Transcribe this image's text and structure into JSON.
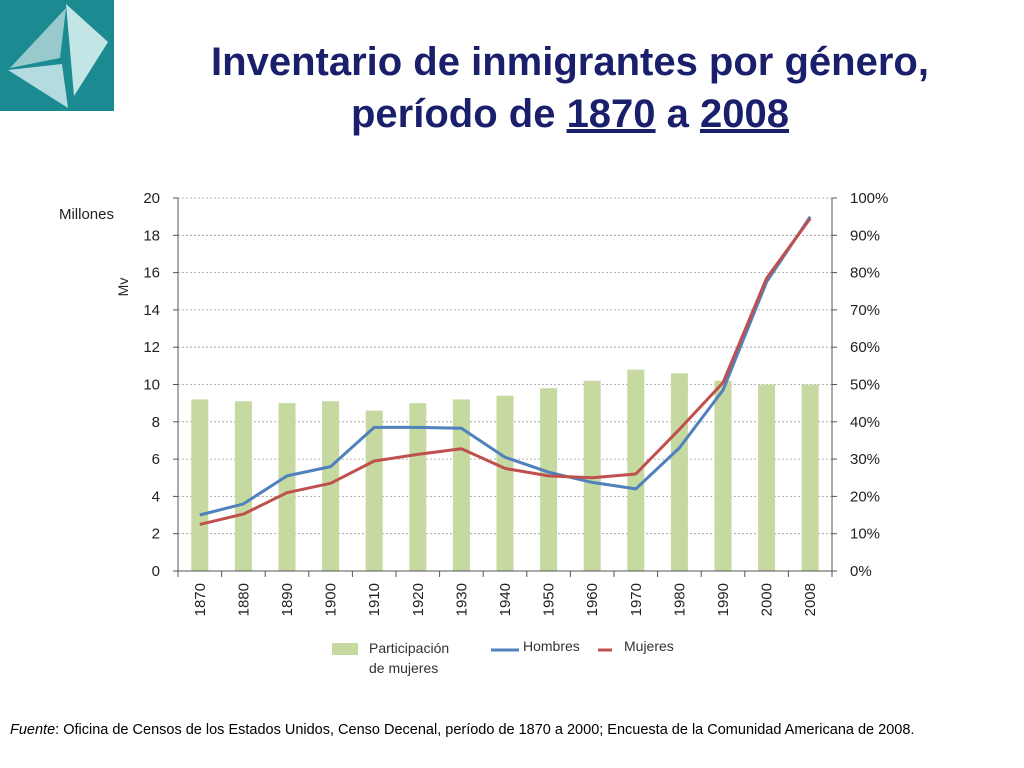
{
  "title": {
    "line1": "Inventario de inmigrantes por género,",
    "line2_prefix": "período de ",
    "line2_year1": "1870",
    "line2_mid": " a ",
    "line2_year2": "2008"
  },
  "source": {
    "label": "Fuente",
    "text": ": Oficina de Censos de los Estados Unidos, Censo Decenal, período de 1870 a 2000; Encuesta de la Comunidad Americana de 2008."
  },
  "colors": {
    "title": "#1a1f6b",
    "bars": "#c5d9a0",
    "hombres": "#4f81bd",
    "mujeres": "#c0504d",
    "logo_bg": "#1b8a91"
  },
  "chart_data": {
    "type": "bar+line",
    "categories": [
      "1870",
      "1880",
      "1890",
      "1900",
      "1910",
      "1920",
      "1930",
      "1940",
      "1950",
      "1960",
      "1970",
      "1980",
      "1990",
      "2000",
      "2008"
    ],
    "left_axis": {
      "label": "Millones",
      "min": 0,
      "max": 20,
      "ticks": [
        "0",
        "2",
        "4",
        "6",
        "8",
        "10",
        "12",
        "14",
        "16",
        "18",
        "20"
      ]
    },
    "right_axis": {
      "min": 0,
      "max": 100,
      "ticks": [
        "0%",
        "10%",
        "20%",
        "30%",
        "40%",
        "50%",
        "60%",
        "70%",
        "80%",
        "90%",
        "100%"
      ]
    },
    "stray_label": "Mv",
    "series": [
      {
        "name": "Participación de mujeres",
        "name_line1": "Participación",
        "name_line2": "de mujeres",
        "kind": "bar",
        "axis": "right",
        "values": [
          46,
          45.5,
          45,
          45.5,
          43,
          45,
          46,
          47,
          49,
          51,
          54,
          53,
          51,
          50,
          50
        ]
      },
      {
        "name": "Hombres",
        "kind": "line",
        "axis": "left",
        "values": [
          3.0,
          3.6,
          5.1,
          5.6,
          7.7,
          7.7,
          7.65,
          6.1,
          5.3,
          4.75,
          4.4,
          6.6,
          9.7,
          15.5,
          19.0
        ]
      },
      {
        "name": "Mujeres",
        "kind": "line",
        "axis": "left",
        "values": [
          2.5,
          3.05,
          4.2,
          4.7,
          5.9,
          6.25,
          6.55,
          5.5,
          5.1,
          5.0,
          5.2,
          7.6,
          10.1,
          15.7,
          18.9
        ]
      }
    ],
    "grid": "horizontal dotted",
    "legend_position": "bottom"
  }
}
